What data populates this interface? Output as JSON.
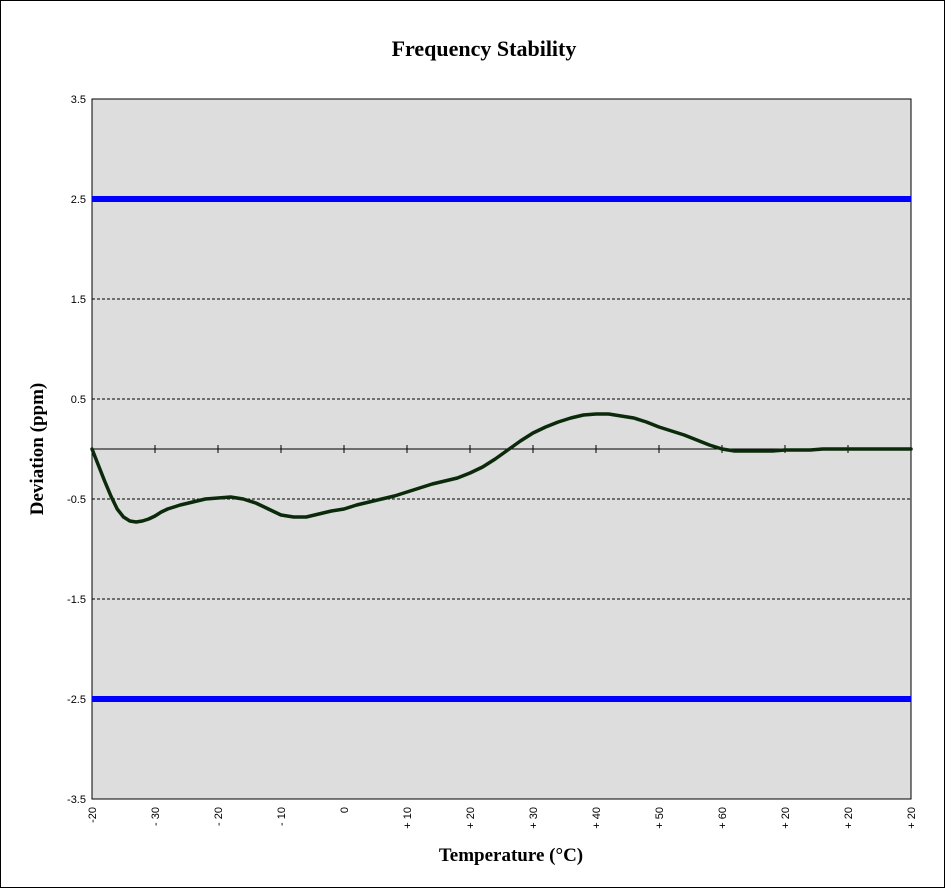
{
  "chart_data": {
    "type": "line",
    "title": "Frequency Stability",
    "xlabel": "Temperature (°C)",
    "ylabel": "Deviation (ppm)",
    "ylim": [
      -3.5,
      3.5
    ],
    "y_ticks": [
      3.5,
      2.5,
      1.5,
      0.5,
      -0.5,
      -1.5,
      -2.5,
      -3.5
    ],
    "y_tick_labels": [
      "3.5",
      "2.5",
      "1.5",
      "0.5",
      "-0.5",
      "-1.5",
      "-2.5",
      "-3.5"
    ],
    "x_tick_labels": [
      "-20",
      "- 30",
      "- 20",
      "- 10",
      "0",
      "+ 10",
      "+ 20",
      "+ 30",
      "+ 40",
      "+ 50",
      "+ 60",
      "+ 20",
      "+ 20",
      "+ 20"
    ],
    "grid": true,
    "limit_lines": [
      {
        "y": 2.5,
        "color": "#0000ff"
      },
      {
        "y": -2.5,
        "color": "#0000ff"
      }
    ],
    "series": [
      {
        "color": "#0b2a0b",
        "x": [
          0,
          0.1,
          0.2,
          0.3,
          0.4,
          0.5,
          0.6,
          0.7,
          0.8,
          0.9,
          1.0,
          1.1,
          1.2,
          1.4,
          1.6,
          1.8,
          2.0,
          2.2,
          2.4,
          2.6,
          2.8,
          3.0,
          3.2,
          3.4,
          3.6,
          3.8,
          4.0,
          4.2,
          4.4,
          4.6,
          4.8,
          5.0,
          5.2,
          5.4,
          5.6,
          5.8,
          6.0,
          6.2,
          6.4,
          6.6,
          6.8,
          7.0,
          7.2,
          7.4,
          7.6,
          7.8,
          8.0,
          8.2,
          8.4,
          8.6,
          8.8,
          9.0,
          9.2,
          9.4,
          9.6,
          9.8,
          10.0,
          10.2,
          10.4,
          10.6,
          10.8,
          11.0,
          11.2,
          11.4,
          11.6,
          11.8,
          12.0,
          12.2,
          12.4,
          12.6,
          12.8,
          13.0
        ],
        "y": [
          0.0,
          -0.16,
          -0.32,
          -0.47,
          -0.6,
          -0.68,
          -0.72,
          -0.73,
          -0.72,
          -0.7,
          -0.67,
          -0.63,
          -0.6,
          -0.56,
          -0.53,
          -0.5,
          -0.49,
          -0.48,
          -0.5,
          -0.54,
          -0.6,
          -0.66,
          -0.68,
          -0.68,
          -0.65,
          -0.62,
          -0.6,
          -0.56,
          -0.53,
          -0.5,
          -0.47,
          -0.43,
          -0.39,
          -0.35,
          -0.32,
          -0.29,
          -0.24,
          -0.18,
          -0.1,
          -0.01,
          0.08,
          0.16,
          0.22,
          0.27,
          0.31,
          0.34,
          0.35,
          0.35,
          0.33,
          0.31,
          0.27,
          0.22,
          0.18,
          0.14,
          0.09,
          0.04,
          0.0,
          -0.02,
          -0.02,
          -0.02,
          -0.02,
          -0.01,
          -0.01,
          -0.01,
          0.0,
          0.0,
          0.0,
          0.0,
          0.0,
          0.0,
          0.0,
          0.0
        ]
      }
    ]
  }
}
